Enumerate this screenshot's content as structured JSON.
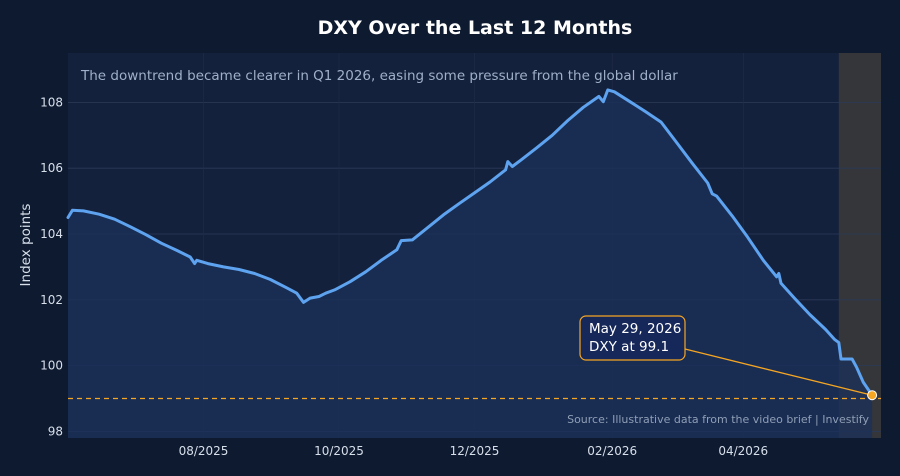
{
  "chart_data": {
    "type": "line",
    "title": "DXY Over the Last 12 Months",
    "subtitle": "The downtrend became clearer in Q1 2026, easing some pressure from the global dollar",
    "xlabel": "",
    "ylabel": "Index points",
    "source": "Source: Illustrative data from the video brief | Investify",
    "ylim": [
      97.8,
      109.5
    ],
    "xlim": [
      "2025-06-01",
      "2026-06-02"
    ],
    "y_ticks": [
      98,
      100,
      102,
      104,
      106,
      108
    ],
    "x_ticks": [
      {
        "date": "2025-08-01",
        "label": "08/2025"
      },
      {
        "date": "2025-10-01",
        "label": "10/2025"
      },
      {
        "date": "2025-12-01",
        "label": "12/2025"
      },
      {
        "date": "2026-02-01",
        "label": "02/2026"
      },
      {
        "date": "2026-04-01",
        "label": "04/2026"
      }
    ],
    "grid": true,
    "reference_line": {
      "y": 99.0,
      "color": "#f5a623",
      "style": "dashed"
    },
    "shaded_period": {
      "start": "2026-05-14",
      "end": "2026-06-02",
      "color": "#3a3a3a"
    },
    "colors": {
      "line": "#5ea3f0",
      "area": "#1b3059",
      "plot_bg": "#14213d",
      "highlight": "#f5a623"
    },
    "annotation": {
      "date": "2026-05-29",
      "value": 99.1,
      "line1": "May 29, 2026",
      "line2": "DXY at 99.1"
    },
    "series": [
      {
        "points": [
          [
            "2025-06-01",
            104.5
          ],
          [
            "2025-06-03",
            104.72
          ],
          [
            "2025-06-08",
            104.7
          ],
          [
            "2025-06-15",
            104.6
          ],
          [
            "2025-06-22",
            104.45
          ],
          [
            "2025-06-29",
            104.22
          ],
          [
            "2025-07-06",
            103.98
          ],
          [
            "2025-07-13",
            103.72
          ],
          [
            "2025-07-20",
            103.5
          ],
          [
            "2025-07-26",
            103.3
          ],
          [
            "2025-07-28",
            103.1
          ],
          [
            "2025-07-29",
            103.2
          ],
          [
            "2025-08-03",
            103.1
          ],
          [
            "2025-08-10",
            103.0
          ],
          [
            "2025-08-17",
            102.92
          ],
          [
            "2025-08-24",
            102.8
          ],
          [
            "2025-08-31",
            102.62
          ],
          [
            "2025-09-07",
            102.38
          ],
          [
            "2025-09-12",
            102.2
          ],
          [
            "2025-09-15",
            101.92
          ],
          [
            "2025-09-18",
            102.05
          ],
          [
            "2025-09-22",
            102.1
          ],
          [
            "2025-09-25",
            102.2
          ],
          [
            "2025-09-29",
            102.3
          ],
          [
            "2025-10-06",
            102.55
          ],
          [
            "2025-10-13",
            102.85
          ],
          [
            "2025-10-20",
            103.2
          ],
          [
            "2025-10-27",
            103.52
          ],
          [
            "2025-10-29",
            103.8
          ],
          [
            "2025-11-03",
            103.82
          ],
          [
            "2025-11-10",
            104.2
          ],
          [
            "2025-11-17",
            104.58
          ],
          [
            "2025-11-24",
            104.92
          ],
          [
            "2025-12-01",
            105.25
          ],
          [
            "2025-12-08",
            105.58
          ],
          [
            "2025-12-15",
            105.95
          ],
          [
            "2025-12-16",
            106.2
          ],
          [
            "2025-12-18",
            106.05
          ],
          [
            "2025-12-22",
            106.25
          ],
          [
            "2025-12-29",
            106.62
          ],
          [
            "2026-01-05",
            107.0
          ],
          [
            "2026-01-12",
            107.45
          ],
          [
            "2026-01-19",
            107.85
          ],
          [
            "2026-01-26",
            108.18
          ],
          [
            "2026-01-28",
            108.02
          ],
          [
            "2026-01-30",
            108.38
          ],
          [
            "2026-02-02",
            108.32
          ],
          [
            "2026-02-09",
            108.02
          ],
          [
            "2026-02-16",
            107.72
          ],
          [
            "2026-02-23",
            107.4
          ],
          [
            "2026-03-02",
            106.78
          ],
          [
            "2026-03-09",
            106.15
          ],
          [
            "2026-03-16",
            105.55
          ],
          [
            "2026-03-18",
            105.22
          ],
          [
            "2026-03-20",
            105.15
          ],
          [
            "2026-03-27",
            104.55
          ],
          [
            "2026-04-03",
            103.9
          ],
          [
            "2026-04-10",
            103.2
          ],
          [
            "2026-04-16",
            102.7
          ],
          [
            "2026-04-17",
            102.8
          ],
          [
            "2026-04-18",
            102.5
          ],
          [
            "2026-04-24",
            102.05
          ],
          [
            "2026-05-01",
            101.55
          ],
          [
            "2026-05-08",
            101.1
          ],
          [
            "2026-05-12",
            100.8
          ],
          [
            "2026-05-14",
            100.7
          ],
          [
            "2026-05-15",
            100.2
          ],
          [
            "2026-05-20",
            100.2
          ],
          [
            "2026-05-22",
            99.95
          ],
          [
            "2026-05-25",
            99.5
          ],
          [
            "2026-05-29",
            99.1
          ]
        ]
      }
    ]
  }
}
